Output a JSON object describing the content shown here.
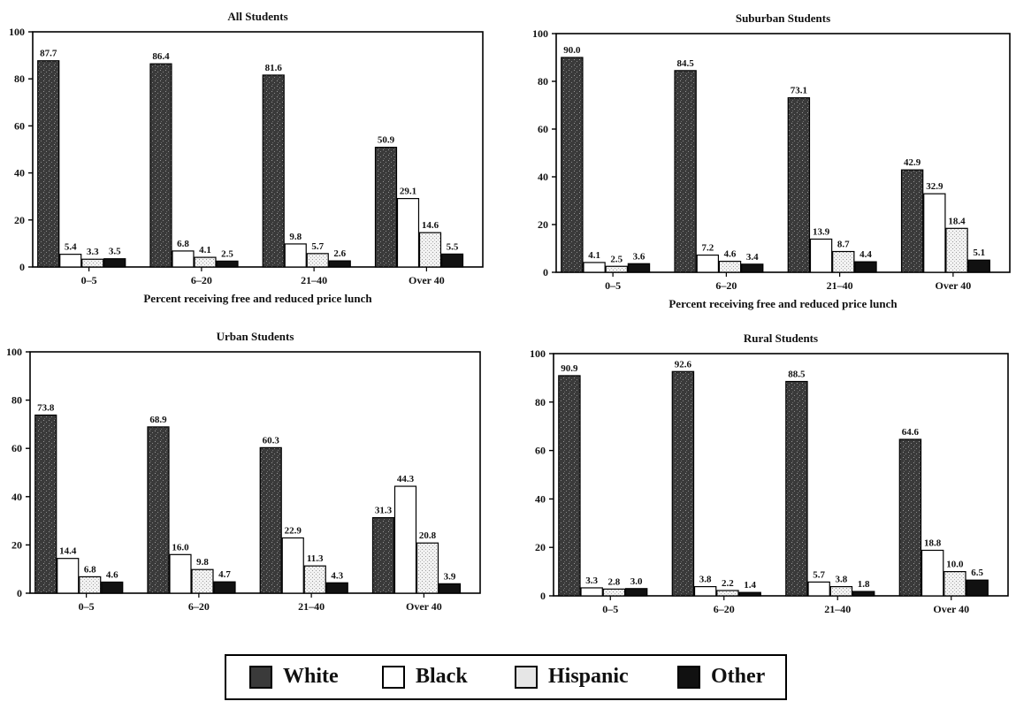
{
  "colors": {
    "White": "#3a3a3a",
    "Black": "#ffffff",
    "Hispanic": "#d8d8d8",
    "Other": "#111111"
  },
  "legend": [
    {
      "name": "White",
      "label": "White"
    },
    {
      "name": "Black",
      "label": "Black"
    },
    {
      "name": "Hispanic",
      "label": "Hispanic"
    },
    {
      "name": "Other",
      "label": "Other"
    }
  ],
  "chart_data": [
    {
      "type": "bar",
      "title": "All Students",
      "xlabel": "Percent receiving free and reduced price lunch",
      "ylabel": "",
      "ylim": [
        0,
        100
      ],
      "yticks": [
        "0",
        "20",
        "40",
        "60",
        "80",
        "100"
      ],
      "categories": [
        "0–5",
        "6–20",
        "21–40",
        "Over 40"
      ],
      "series": [
        {
          "name": "White",
          "values": [
            87.7,
            86.4,
            81.6,
            50.9
          ],
          "labels": [
            "87.7",
            "86.4",
            "81.6",
            "50.9"
          ]
        },
        {
          "name": "Black",
          "values": [
            5.4,
            6.8,
            9.8,
            29.1
          ],
          "labels": [
            "5.4",
            "6.8",
            "9.8",
            "29.1"
          ]
        },
        {
          "name": "Hispanic",
          "values": [
            3.3,
            4.1,
            5.7,
            14.6
          ],
          "labels": [
            "3.3",
            "4.1",
            "5.7",
            "14.6"
          ]
        },
        {
          "name": "Other",
          "values": [
            3.5,
            2.5,
            2.6,
            5.5
          ],
          "labels": [
            "3.5",
            "2.5",
            "2.6",
            "5.5"
          ]
        }
      ]
    },
    {
      "type": "bar",
      "title": "Suburban Students",
      "xlabel": "Percent receiving free and reduced price lunch",
      "ylabel": "",
      "ylim": [
        0,
        100
      ],
      "yticks": [
        "0",
        "20",
        "40",
        "60",
        "80",
        "100"
      ],
      "categories": [
        "0–5",
        "6–20",
        "21–40",
        "Over 40"
      ],
      "series": [
        {
          "name": "White",
          "values": [
            90.0,
            84.5,
            73.1,
            42.9
          ],
          "labels": [
            "90.0",
            "84.5",
            "73.1",
            "42.9"
          ]
        },
        {
          "name": "Black",
          "values": [
            4.1,
            7.2,
            13.9,
            32.9
          ],
          "labels": [
            "4.1",
            "7.2",
            "13.9",
            "32.9"
          ]
        },
        {
          "name": "Hispanic",
          "values": [
            2.5,
            4.6,
            8.7,
            18.4
          ],
          "labels": [
            "2.5",
            "4.6",
            "8.7",
            "18.4"
          ]
        },
        {
          "name": "Other",
          "values": [
            3.6,
            3.4,
            4.4,
            5.1
          ],
          "labels": [
            "3.6",
            "3.4",
            "4.4",
            "5.1"
          ]
        }
      ]
    },
    {
      "type": "bar",
      "title": "Urban Students",
      "xlabel": "",
      "ylabel": "",
      "ylim": [
        0,
        100
      ],
      "yticks": [
        "0",
        "20",
        "40",
        "60",
        "80",
        "100"
      ],
      "categories": [
        "0–5",
        "6–20",
        "21–40",
        "Over 40"
      ],
      "series": [
        {
          "name": "White",
          "values": [
            73.8,
            68.9,
            60.3,
            31.3
          ],
          "labels": [
            "73.8",
            "68.9",
            "60.3",
            "31.3"
          ]
        },
        {
          "name": "Black",
          "values": [
            14.4,
            16.0,
            22.9,
            44.3
          ],
          "labels": [
            "14.4",
            "16.0",
            "22.9",
            "44.3"
          ]
        },
        {
          "name": "Hispanic",
          "values": [
            6.8,
            9.8,
            11.3,
            20.8
          ],
          "labels": [
            "6.8",
            "9.8",
            "11.3",
            "20.8"
          ]
        },
        {
          "name": "Other",
          "values": [
            4.6,
            4.7,
            4.3,
            3.9
          ],
          "labels": [
            "4.6",
            "4.7",
            "4.3",
            "3.9"
          ]
        }
      ]
    },
    {
      "type": "bar",
      "title": "Rural Students",
      "xlabel": "",
      "ylabel": "",
      "ylim": [
        0,
        100
      ],
      "yticks": [
        "0",
        "20",
        "40",
        "60",
        "80",
        "100"
      ],
      "categories": [
        "0–5",
        "6–20",
        "21–40",
        "Over 40"
      ],
      "series": [
        {
          "name": "White",
          "values": [
            90.9,
            92.6,
            88.5,
            64.6
          ],
          "labels": [
            "90.9",
            "92.6",
            "88.5",
            "64.6"
          ]
        },
        {
          "name": "Black",
          "values": [
            3.3,
            3.8,
            5.7,
            18.8
          ],
          "labels": [
            "3.3",
            "3.8",
            "5.7",
            "18.8"
          ]
        },
        {
          "name": "Hispanic",
          "values": [
            2.8,
            2.2,
            3.8,
            10.0
          ],
          "labels": [
            "2.8",
            "2.2",
            "3.8",
            "10.0"
          ]
        },
        {
          "name": "Other",
          "values": [
            3.0,
            1.4,
            1.8,
            6.5
          ],
          "labels": [
            "3.0",
            "1.4",
            "1.8",
            "6.5"
          ]
        }
      ]
    }
  ]
}
